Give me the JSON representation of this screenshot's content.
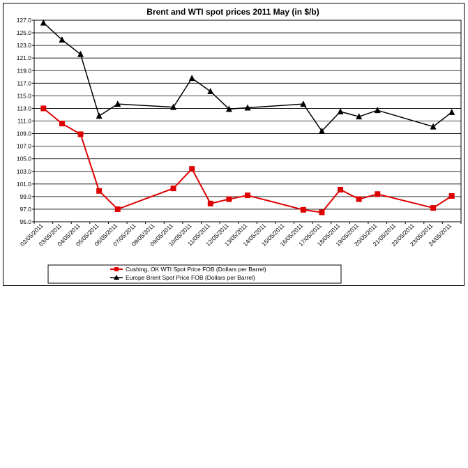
{
  "chart_data": {
    "type": "line",
    "title": "Brent and WTI spot prices 2011 May (in $/b)",
    "xlabel": "",
    "ylabel": "",
    "ylim": [
      95.0,
      127.0
    ],
    "y_ticks": [
      "127.0",
      "125.0",
      "123.0",
      "121.0",
      "119.0",
      "117.0",
      "115.0",
      "113.0",
      "111.0",
      "109.0",
      "107.0",
      "105.0",
      "103.0",
      "101.0",
      "99.0",
      "97.0",
      "95.0"
    ],
    "grid": "horizontal",
    "legend_position": "bottom",
    "categories": [
      "02/05/2011",
      "03/05/2011",
      "04/05/2011",
      "05/05/2011",
      "06/05/2011",
      "07/05/2011",
      "08/05/2011",
      "09/05/2011",
      "10/05/2011",
      "11/05/2011",
      "12/05/2011",
      "13/05/2011",
      "14/05/2011",
      "15/05/2011",
      "16/05/2011",
      "17/05/2011",
      "18/05/2011",
      "19/05/2011",
      "20/05/2011",
      "21/05/2011",
      "22/05/2011",
      "23/05/2011",
      "24/05/2011"
    ],
    "series": [
      {
        "name": "Cushing, OK WTI Spot Price FOB (Dollars per Barrel)",
        "color": "#dd0000",
        "marker": "square",
        "values": [
          113.0,
          110.6,
          108.9,
          99.9,
          97.0,
          null,
          null,
          100.3,
          103.4,
          97.9,
          98.6,
          99.2,
          null,
          null,
          96.9,
          96.5,
          100.1,
          98.6,
          99.4,
          null,
          null,
          97.2,
          99.1
        ]
      },
      {
        "name": "Europe Brent Spot Price FOB (Dollars per Barrel)",
        "color": "#000000",
        "marker": "triangle",
        "values": [
          126.6,
          123.9,
          121.6,
          111.8,
          113.7,
          null,
          null,
          113.2,
          117.8,
          115.7,
          112.9,
          113.1,
          null,
          null,
          113.7,
          109.4,
          112.5,
          111.7,
          112.7,
          null,
          null,
          110.1,
          112.4
        ]
      }
    ]
  }
}
